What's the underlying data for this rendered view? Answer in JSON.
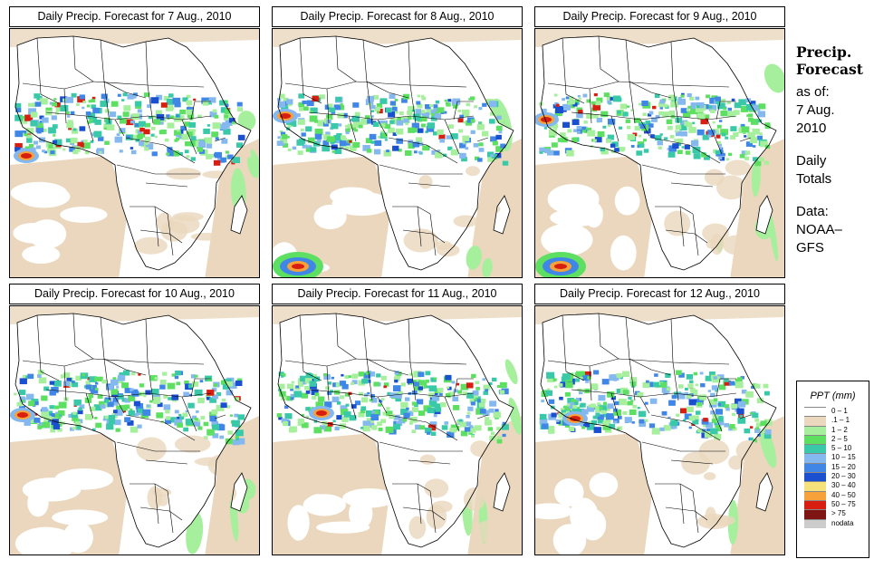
{
  "panels": [
    {
      "title": "Daily Precip. Forecast for  7 Aug., 2010",
      "variant": 0
    },
    {
      "title": "Daily Precip. Forecast for  8 Aug., 2010",
      "variant": 1
    },
    {
      "title": "Daily Precip. Forecast for  9 Aug., 2010",
      "variant": 2
    },
    {
      "title": "Daily Precip. Forecast for  10 Aug., 2010",
      "variant": 3
    },
    {
      "title": "Daily Precip. Forecast for  11 Aug., 2010",
      "variant": 4
    },
    {
      "title": "Daily Precip. Forecast for  12 Aug., 2010",
      "variant": 5
    }
  ],
  "sidebar": {
    "title_line1": "Precip.",
    "title_line2": "Forecast",
    "asof_line1": "as of:",
    "asof_line2": "7 Aug.",
    "asof_line3": "2010",
    "daily_line1": "Daily",
    "daily_line2": "Totals",
    "data_line1": "Data:",
    "data_line2": "NOAA–",
    "data_line3": "GFS"
  },
  "legend": {
    "title": "PPT (mm)",
    "items": [
      {
        "label": "0 – 1",
        "color": "#ffffff"
      },
      {
        "label": ".1 – 1",
        "color": "#ead7bd"
      },
      {
        "label": "1 – 2",
        "color": "#a6ef9c"
      },
      {
        "label": "2 – 5",
        "color": "#5de062"
      },
      {
        "label": "5 – 10",
        "color": "#39c9a8"
      },
      {
        "label": "10 – 15",
        "color": "#84b8ef"
      },
      {
        "label": "15 – 20",
        "color": "#3f86e6"
      },
      {
        "label": "20 – 30",
        "color": "#1a4fd0"
      },
      {
        "label": "30 – 40",
        "color": "#f5e27a"
      },
      {
        "label": "40 – 50",
        "color": "#f7a13a"
      },
      {
        "label": "50 – 75",
        "color": "#d81e10"
      },
      {
        "label": "> 75",
        "color": "#7e1414"
      },
      {
        "label": "nodata",
        "color": "#cccccc"
      }
    ]
  },
  "colors": {
    "land": "#ffffff",
    "sea_dry": "#ead7bd",
    "border": "#000000"
  }
}
